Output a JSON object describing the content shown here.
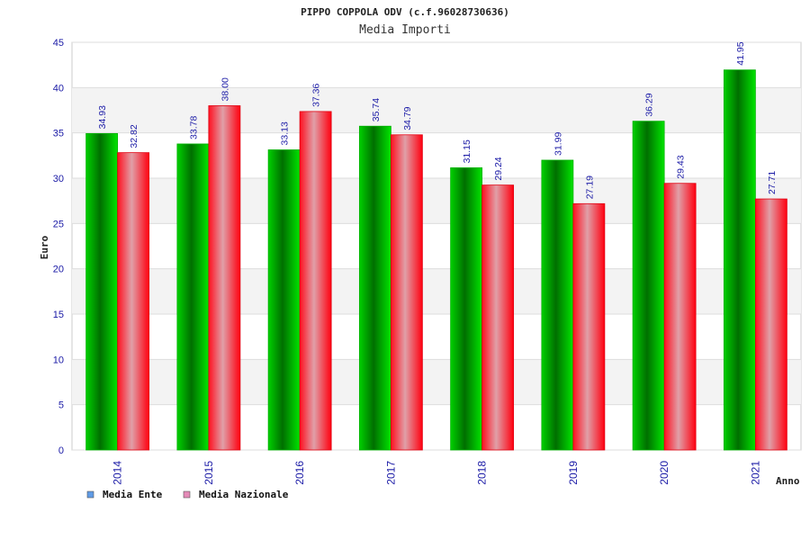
{
  "chart_data": {
    "type": "bar",
    "title": "PIPPO COPPOLA ODV (c.f.96028730636)",
    "subtitle": "Media Importi",
    "xlabel": "Anno",
    "ylabel": "Euro",
    "ylim": [
      0,
      45
    ],
    "yticks": [
      0,
      5,
      10,
      15,
      20,
      25,
      30,
      35,
      40,
      45
    ],
    "categories": [
      "2014",
      "2015",
      "2016",
      "2017",
      "2018",
      "2019",
      "2020",
      "2021"
    ],
    "series": [
      {
        "name": "Media Ente",
        "values": [
          34.93,
          33.78,
          33.13,
          35.74,
          31.15,
          31.99,
          36.29,
          41.95
        ],
        "labels": [
          "34.93",
          "33.78",
          "33.13",
          "35.74",
          "31.15",
          "31.99",
          "36.29",
          "41.95"
        ],
        "legend_color": "#5f9be6"
      },
      {
        "name": "Media Nazionale",
        "values": [
          32.82,
          38.0,
          37.36,
          34.79,
          29.24,
          27.19,
          29.43,
          27.71
        ],
        "labels": [
          "32.82",
          "38.00",
          "37.36",
          "34.79",
          "29.24",
          "27.19",
          "29.43",
          "27.71"
        ],
        "legend_color": "#e58bb8"
      }
    ],
    "grid": true,
    "legend_position": "bottom-left"
  }
}
